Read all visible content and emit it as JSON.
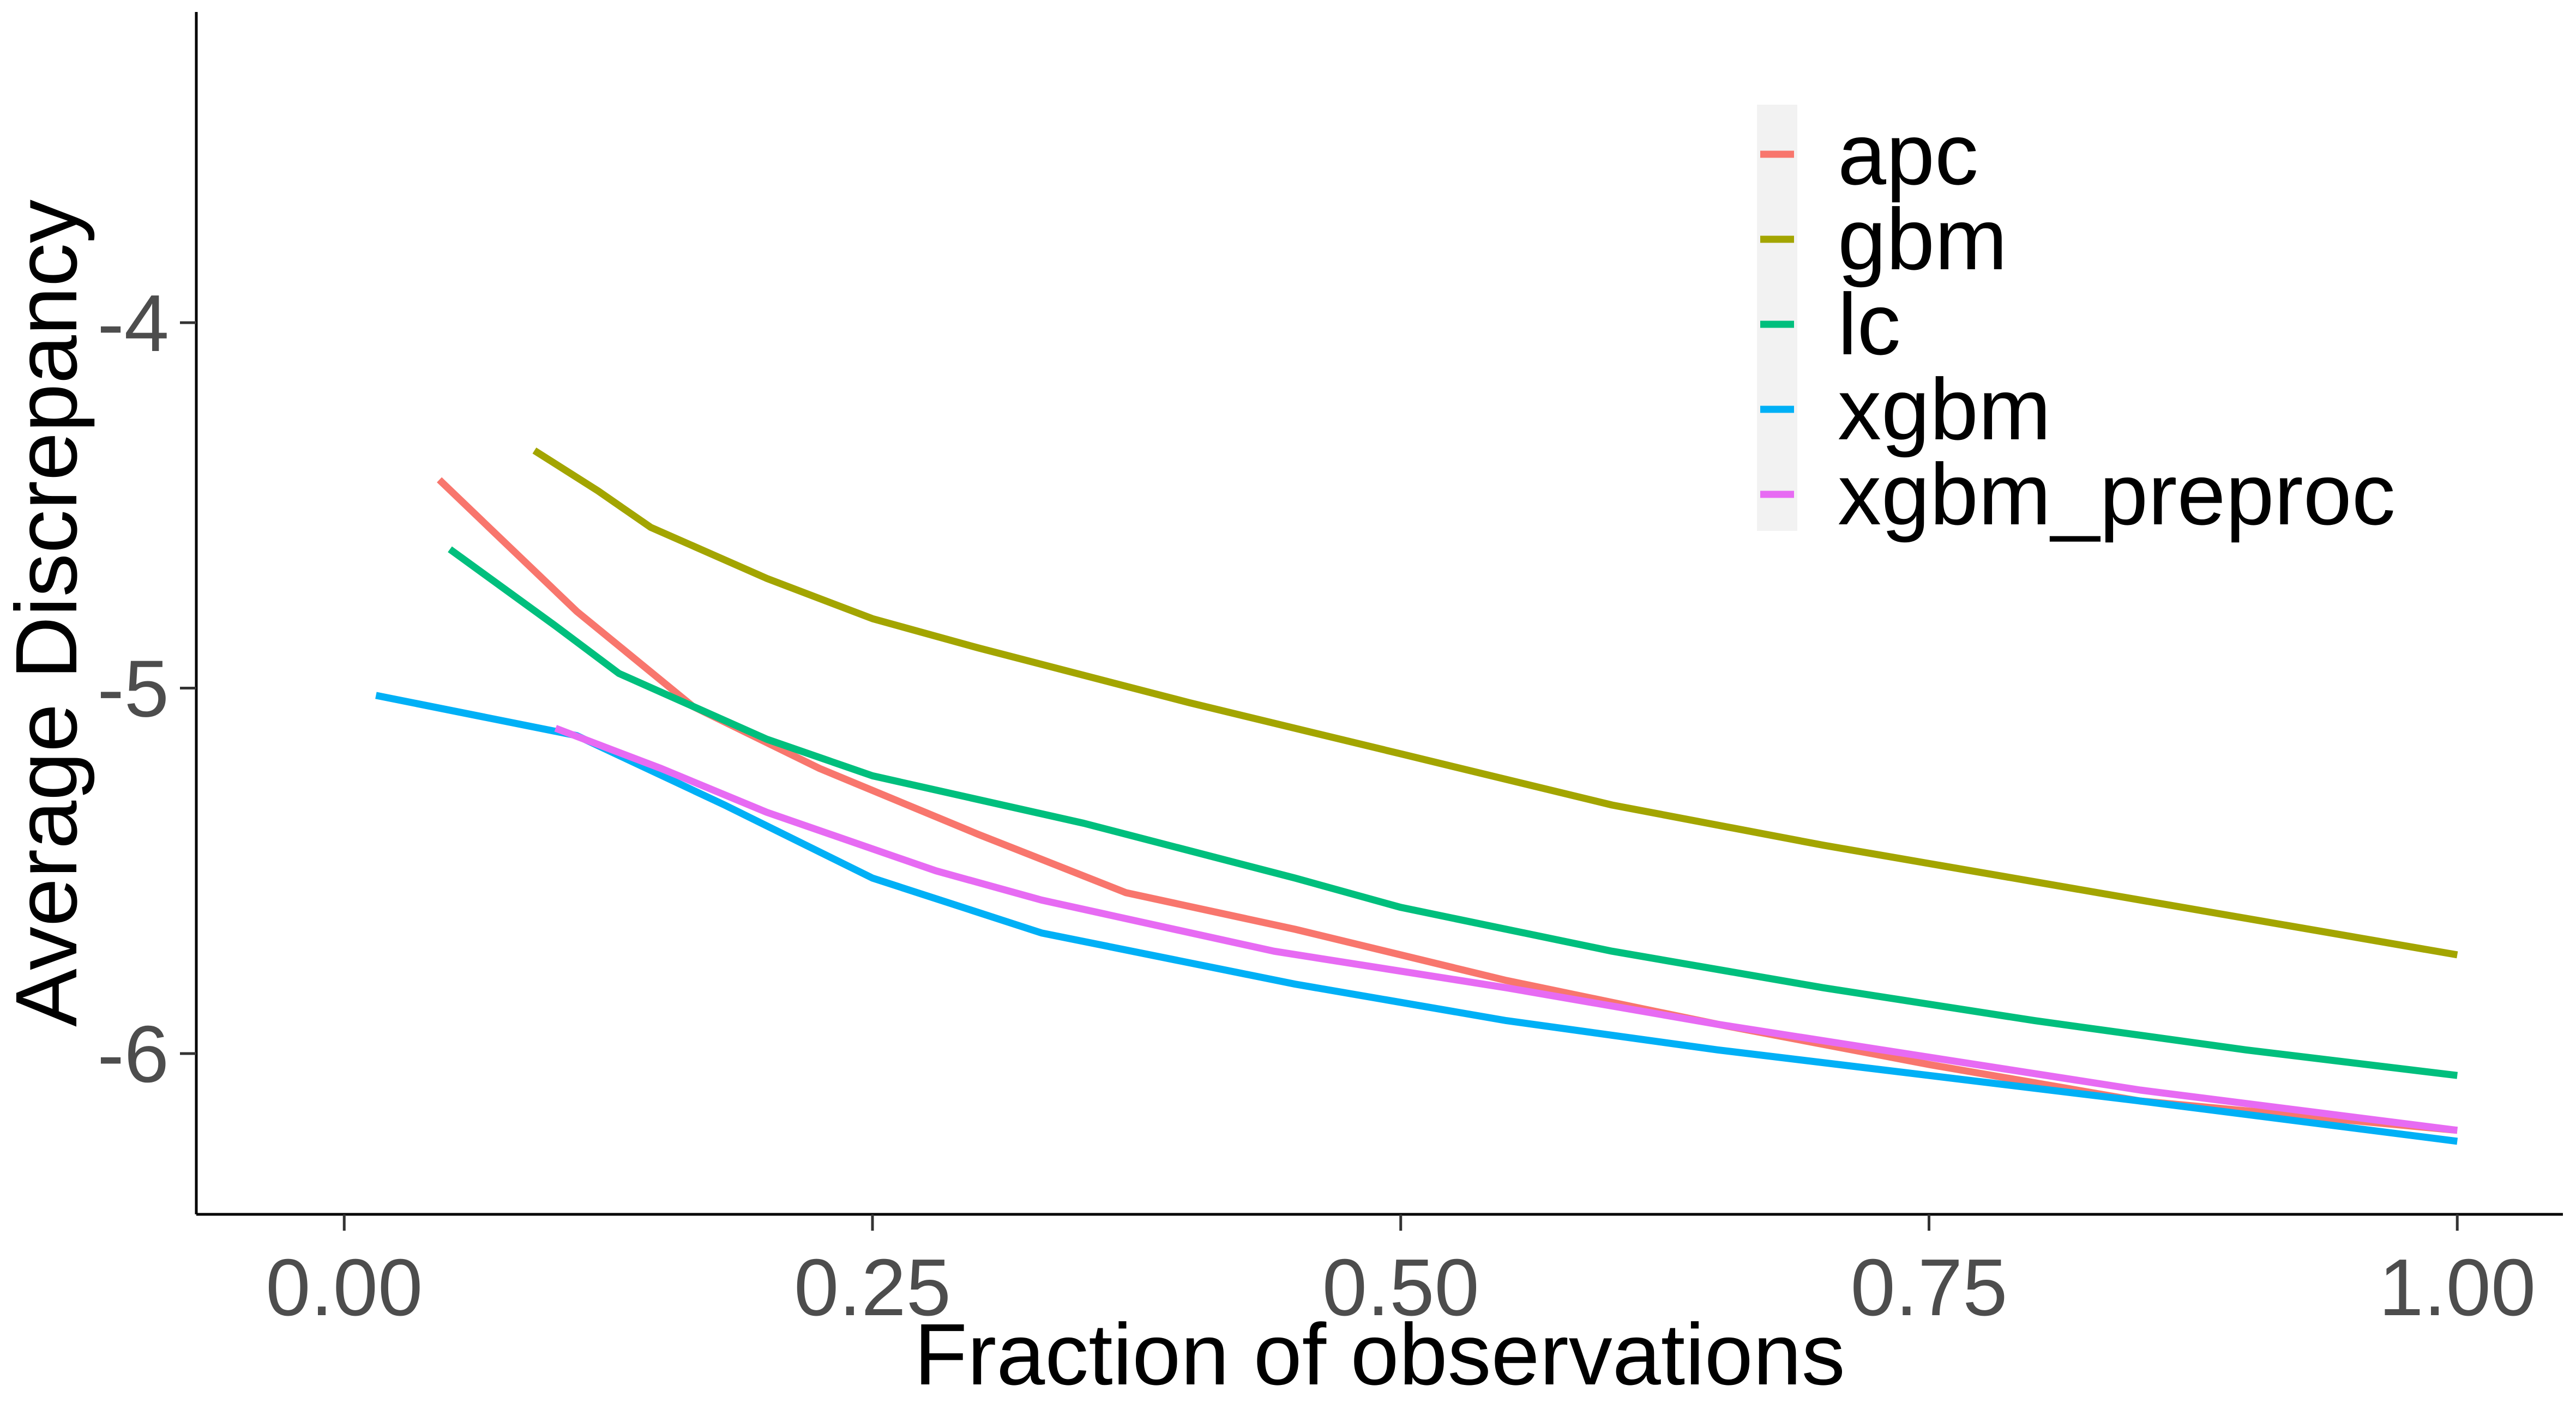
{
  "chart_data": {
    "type": "line",
    "title": "",
    "xlabel": "Fraction of observations",
    "ylabel": "Average Discrepancy",
    "xlim": [
      -0.07,
      1.05
    ],
    "ylim": [
      -6.44,
      -3.15
    ],
    "x_ticks": [
      0.0,
      0.25,
      0.5,
      0.75,
      1.0
    ],
    "x_tick_labels": [
      "0.00",
      "0.25",
      "0.50",
      "0.75",
      "1.00"
    ],
    "y_ticks": [
      -4,
      -5,
      -6
    ],
    "y_tick_labels": [
      "-4",
      "-5",
      "-6"
    ],
    "grid": false,
    "legend_position": "top-right",
    "series": [
      {
        "name": "apc",
        "color": "#F8766D",
        "x": [
          0.045,
          0.11,
          0.165,
          0.225,
          0.3,
          0.37,
          0.45,
          0.55,
          0.65,
          0.75,
          0.85,
          1.0
        ],
        "y": [
          -4.43,
          -4.79,
          -5.05,
          -5.22,
          -5.4,
          -5.56,
          -5.66,
          -5.8,
          -5.92,
          -6.03,
          -6.13,
          -6.21
        ]
      },
      {
        "name": "gbm",
        "color": "#A3A500",
        "x": [
          0.09,
          0.12,
          0.145,
          0.2,
          0.25,
          0.3,
          0.4,
          0.5,
          0.6,
          0.7,
          0.8,
          0.9,
          1.0
        ],
        "y": [
          -4.35,
          -4.46,
          -4.56,
          -4.7,
          -4.81,
          -4.89,
          -5.04,
          -5.18,
          -5.32,
          -5.43,
          -5.53,
          -5.63,
          -5.73
        ]
      },
      {
        "name": "lc",
        "color": "#00BF7D",
        "x": [
          0.05,
          0.1,
          0.13,
          0.2,
          0.25,
          0.35,
          0.45,
          0.5,
          0.6,
          0.7,
          0.8,
          0.9,
          1.0
        ],
        "y": [
          -4.62,
          -4.83,
          -4.96,
          -5.14,
          -5.24,
          -5.37,
          -5.52,
          -5.6,
          -5.72,
          -5.82,
          -5.91,
          -5.99,
          -6.06
        ]
      },
      {
        "name": "xgbm",
        "color": "#00B0F6",
        "x": [
          0.015,
          0.11,
          0.18,
          0.25,
          0.33,
          0.45,
          0.55,
          0.65,
          0.75,
          0.85,
          1.0
        ],
        "y": [
          -5.02,
          -5.13,
          -5.32,
          -5.52,
          -5.67,
          -5.81,
          -5.91,
          -5.99,
          -6.06,
          -6.13,
          -6.24
        ]
      },
      {
        "name": "xgbm_preproc",
        "color": "#E76BF3",
        "x": [
          0.1,
          0.15,
          0.2,
          0.28,
          0.33,
          0.44,
          0.55,
          0.65,
          0.75,
          0.85,
          1.0
        ],
        "y": [
          -5.11,
          -5.22,
          -5.34,
          -5.5,
          -5.58,
          -5.72,
          -5.82,
          -5.92,
          -6.01,
          -6.1,
          -6.21
        ]
      }
    ]
  }
}
